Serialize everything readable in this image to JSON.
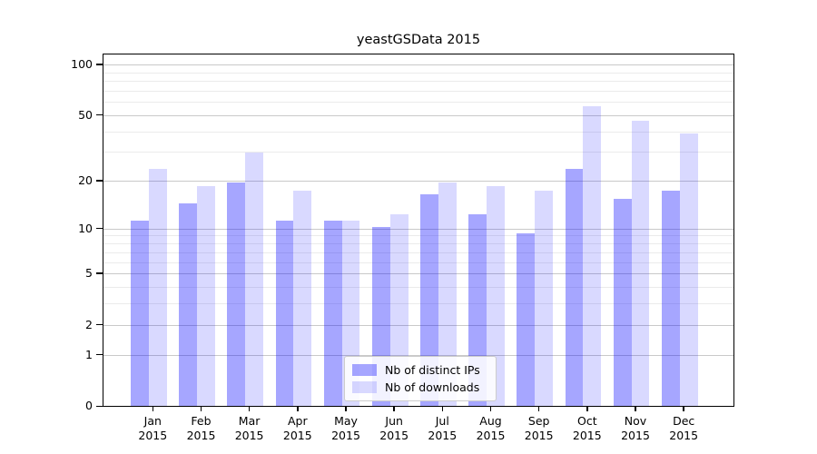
{
  "chart_data": {
    "type": "bar",
    "title": "yeastGSData 2015",
    "categories": [
      "Jan",
      "Feb",
      "Mar",
      "Apr",
      "May",
      "Jun",
      "Jul",
      "Aug",
      "Sep",
      "Oct",
      "Nov",
      "Dec"
    ],
    "year_label": "2015",
    "series": [
      {
        "name": "Nb of distinct IPs",
        "color": "rgba(0,0,255,0.35)",
        "values": [
          11,
          14,
          19,
          11,
          11,
          10,
          16,
          12,
          9,
          23,
          15,
          17
        ]
      },
      {
        "name": "Nb of downloads",
        "color": "rgba(0,0,255,0.15)",
        "values": [
          23,
          18,
          29,
          17,
          11,
          12,
          19,
          18,
          17,
          55,
          45,
          38
        ]
      }
    ],
    "ylabel": "",
    "xlabel": "",
    "y_scale": "log1p",
    "y_tick_values": [
      100,
      50,
      20,
      10,
      5,
      2,
      1,
      0
    ],
    "y_minor_gridlines": [
      3,
      4,
      6,
      7,
      8,
      9,
      30,
      40,
      60,
      70,
      80,
      90
    ],
    "y_major_gridlines": [
      1,
      2,
      5,
      10,
      20,
      50,
      100
    ],
    "ylim_top": 115,
    "grid": true,
    "legend_position": "bottom-center",
    "colors": {
      "major_grid": "#c9c9c9",
      "minor_grid": "#ebebeb",
      "spine": "#000000"
    }
  }
}
